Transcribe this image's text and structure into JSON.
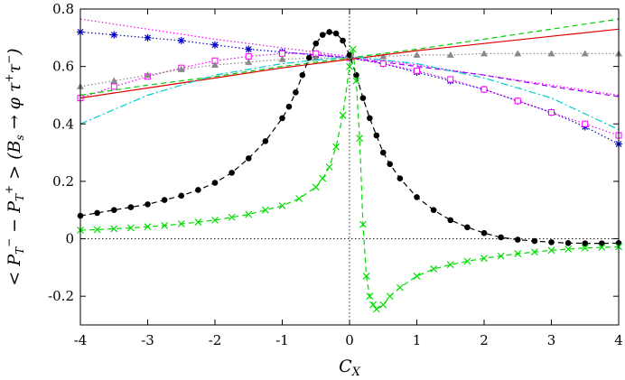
{
  "chart_data": {
    "type": "line",
    "title": "",
    "xlabel": "C_X",
    "ylabel": "< P_T^- − P_T^+ > (B_s → φ τ^+ τ^-)",
    "xlim": [
      -4,
      4
    ],
    "ylim": [
      -0.3,
      0.8
    ],
    "x_ticks": [
      -4,
      -3,
      -2,
      -1,
      0,
      1,
      2,
      3,
      4
    ],
    "x_tick_labels": [
      "-4",
      "-3",
      "-2",
      "-1",
      "0",
      "1",
      "2",
      "3",
      "4"
    ],
    "y_ticks": [
      -0.2,
      0,
      0.2,
      0.4,
      0.6,
      0.8
    ],
    "y_tick_labels": [
      "-0.2",
      "0",
      "0.2",
      "0.4",
      "0.6",
      "0.8"
    ],
    "grid": false,
    "legend": "none",
    "zero_lines": true,
    "series": [
      {
        "color": "#ff00ff",
        "style": "dotted-line",
        "marker": "none",
        "x": [
          -4,
          -3,
          -2,
          -1,
          0,
          1,
          2,
          3,
          4
        ],
        "y": [
          0.765,
          0.73,
          0.695,
          0.665,
          0.635,
          0.605,
          0.57,
          0.535,
          0.5
        ]
      },
      {
        "color": "#0000cc",
        "style": "dotted-line",
        "marker": "asterisk",
        "x": [
          -4,
          -3.5,
          -3,
          -2.5,
          -2,
          -1.5,
          -1,
          -0.5,
          0,
          0.5,
          1,
          1.5,
          2,
          2.5,
          3,
          3.5,
          4
        ],
        "y": [
          0.72,
          0.71,
          0.7,
          0.69,
          0.675,
          0.66,
          0.65,
          0.64,
          0.63,
          0.61,
          0.58,
          0.55,
          0.52,
          0.48,
          0.44,
          0.39,
          0.33
        ]
      },
      {
        "color": "#9900ff",
        "style": "dashed-line",
        "marker": "none",
        "x": [
          -1,
          0,
          1,
          2,
          3,
          4
        ],
        "y": [
          0.65,
          0.63,
          0.6,
          0.57,
          0.53,
          0.495
        ]
      },
      {
        "color": "#ff00ff",
        "style": "dotted-line",
        "marker": "open-square",
        "x": [
          -4,
          -3.5,
          -3,
          -2.5,
          -2,
          -1.5,
          -1,
          -0.5,
          0,
          0.5,
          1,
          1.5,
          2,
          2.5,
          3,
          3.5,
          4
        ],
        "y": [
          0.49,
          0.53,
          0.565,
          0.595,
          0.62,
          0.635,
          0.645,
          0.645,
          0.63,
          0.61,
          0.585,
          0.555,
          0.52,
          0.48,
          0.44,
          0.4,
          0.36
        ]
      },
      {
        "color": "#888888",
        "style": "dotted-line",
        "marker": "filled-triangle",
        "x": [
          -4,
          -3.5,
          -3,
          -2.5,
          -2,
          -1.5,
          -1,
          -0.5,
          0,
          0.5,
          1,
          1.5,
          2,
          2.5,
          3,
          3.5,
          4
        ],
        "y": [
          0.53,
          0.55,
          0.57,
          0.59,
          0.605,
          0.615,
          0.625,
          0.63,
          0.63,
          0.635,
          0.64,
          0.64,
          0.645,
          0.645,
          0.645,
          0.645,
          0.645
        ]
      },
      {
        "color": "#00cc00",
        "style": "dashed-line",
        "marker": "none",
        "x": [
          -4,
          -3,
          -2,
          -1,
          0,
          1,
          2,
          3,
          4
        ],
        "y": [
          0.5,
          0.535,
          0.565,
          0.6,
          0.63,
          0.66,
          0.695,
          0.73,
          0.765
        ]
      },
      {
        "color": "#dd0000",
        "style": "solid-line",
        "marker": "none",
        "x": [
          -4,
          -3,
          -2,
          -1,
          0,
          1,
          2,
          3,
          4
        ],
        "y": [
          0.49,
          0.525,
          0.56,
          0.595,
          0.625,
          0.655,
          0.68,
          0.705,
          0.73
        ]
      },
      {
        "color": "#00cccc",
        "style": "dash-dot-line",
        "marker": "none",
        "x": [
          -4,
          -3,
          -2,
          -1,
          0,
          1,
          2,
          3,
          4
        ],
        "y": [
          0.4,
          0.5,
          0.57,
          0.61,
          0.635,
          0.61,
          0.56,
          0.49,
          0.38
        ]
      },
      {
        "color": "#000000",
        "style": "dashed-line",
        "marker": "filled-circle",
        "x": [
          -4,
          -3.75,
          -3.5,
          -3.25,
          -3,
          -2.75,
          -2.5,
          -2.25,
          -2,
          -1.75,
          -1.5,
          -1.25,
          -1,
          -0.9,
          -0.8,
          -0.7,
          -0.6,
          -0.5,
          -0.4,
          -0.3,
          -0.2,
          -0.1,
          0,
          0.1,
          0.2,
          0.3,
          0.4,
          0.5,
          0.6,
          0.75,
          1,
          1.25,
          1.5,
          1.75,
          2,
          2.25,
          2.5,
          2.75,
          3,
          3.25,
          3.5,
          3.75,
          4
        ],
        "y": [
          0.08,
          0.09,
          0.1,
          0.11,
          0.12,
          0.135,
          0.15,
          0.17,
          0.195,
          0.23,
          0.28,
          0.34,
          0.42,
          0.46,
          0.51,
          0.57,
          0.63,
          0.68,
          0.71,
          0.72,
          0.715,
          0.69,
          0.64,
          0.57,
          0.49,
          0.42,
          0.36,
          0.3,
          0.26,
          0.21,
          0.145,
          0.1,
          0.065,
          0.04,
          0.02,
          0.005,
          -0.003,
          -0.008,
          -0.012,
          -0.015,
          -0.016,
          -0.016,
          -0.015
        ]
      },
      {
        "color": "#00dd00",
        "style": "dashed-line",
        "marker": "x",
        "x": [
          -4,
          -3.75,
          -3.5,
          -3.25,
          -3,
          -2.75,
          -2.5,
          -2.25,
          -2,
          -1.75,
          -1.5,
          -1.25,
          -1,
          -0.75,
          -0.5,
          -0.4,
          -0.3,
          -0.2,
          -0.1,
          0,
          0.05,
          0.1,
          0.15,
          0.2,
          0.25,
          0.3,
          0.35,
          0.4,
          0.5,
          0.6,
          0.75,
          1,
          1.25,
          1.5,
          1.75,
          2,
          2.25,
          2.5,
          2.75,
          3,
          3.25,
          3.5,
          3.75,
          4
        ],
        "y": [
          0.03,
          0.032,
          0.035,
          0.038,
          0.042,
          0.046,
          0.052,
          0.058,
          0.065,
          0.075,
          0.085,
          0.1,
          0.115,
          0.14,
          0.18,
          0.21,
          0.25,
          0.32,
          0.43,
          0.6,
          0.66,
          0.55,
          0.35,
          0.05,
          -0.13,
          -0.2,
          -0.23,
          -0.245,
          -0.23,
          -0.2,
          -0.17,
          -0.13,
          -0.105,
          -0.09,
          -0.078,
          -0.068,
          -0.06,
          -0.052,
          -0.046,
          -0.04,
          -0.036,
          -0.032,
          -0.03,
          -0.028
        ]
      }
    ]
  }
}
